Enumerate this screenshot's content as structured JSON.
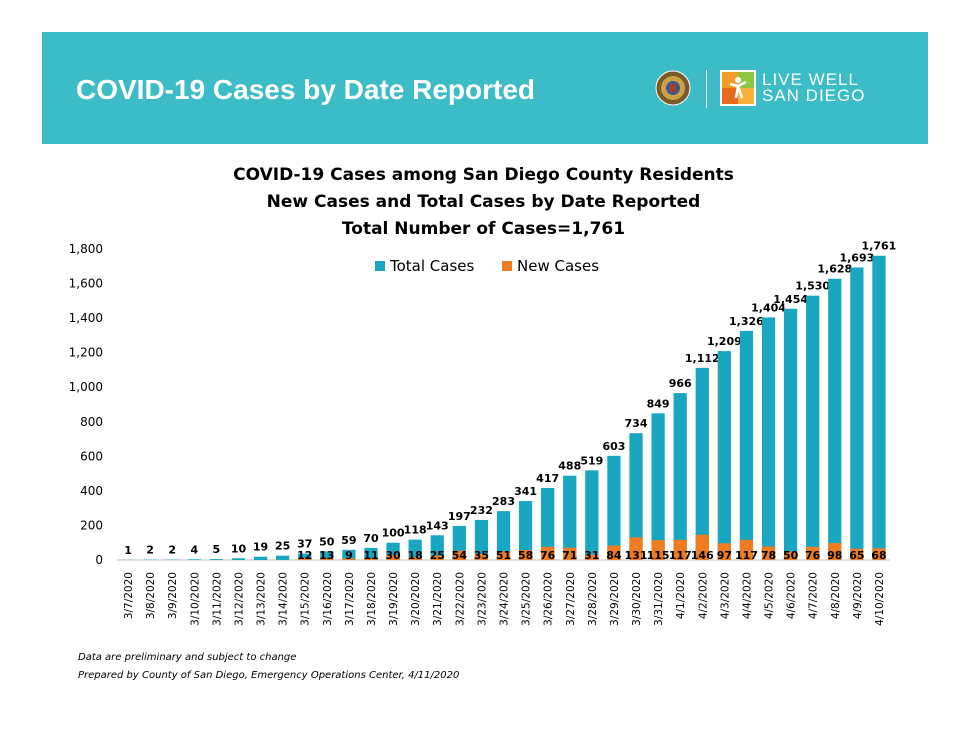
{
  "banner": {
    "title": "COVID-19 Cases by Date Reported",
    "logo_line1": "LIVE WELL",
    "logo_line2": "SAN DIEGO",
    "seal_icon": "county-seal-icon",
    "logo_icon": "live-well-logo-icon"
  },
  "chart_data": {
    "type": "bar",
    "title_lines": [
      "COVID-19 Cases among San Diego County Residents",
      "New Cases and Total Cases by Date Reported",
      "Total Number of Cases=1,761"
    ],
    "categories": [
      "3/7/2020",
      "3/8/2020",
      "3/9/2020",
      "3/10/2020",
      "3/11/2020",
      "3/12/2020",
      "3/13/2020",
      "3/14/2020",
      "3/15/2020",
      "3/16/2020",
      "3/17/2020",
      "3/18/2020",
      "3/19/2020",
      "3/20/2020",
      "3/21/2020",
      "3/22/2020",
      "3/23/2020",
      "3/24/2020",
      "3/25/2020",
      "3/26/2020",
      "3/27/2020",
      "3/28/2020",
      "3/29/2020",
      "3/30/2020",
      "3/31/2020",
      "4/1/2020",
      "4/2/2020",
      "4/3/2020",
      "4/4/2020",
      "4/5/2020",
      "4/6/2020",
      "4/7/2020",
      "4/8/2020",
      "4/9/2020",
      "4/10/2020"
    ],
    "series": [
      {
        "name": "Total Cases",
        "color": "#18a6c0",
        "values": [
          1,
          2,
          2,
          4,
          5,
          10,
          19,
          25,
          37,
          50,
          59,
          70,
          100,
          118,
          143,
          197,
          232,
          283,
          341,
          417,
          488,
          519,
          603,
          734,
          849,
          966,
          1112,
          1209,
          1326,
          1404,
          1454,
          1530,
          1628,
          1693,
          1761
        ],
        "labels": [
          "1",
          "2",
          "2",
          "4",
          "5",
          "10",
          "19",
          "25",
          "37",
          "50",
          "59",
          "70",
          "100",
          "118",
          "143",
          "197",
          "232",
          "283",
          "341",
          "417",
          "488",
          "519",
          "603",
          "734",
          "849",
          "966",
          "1,112",
          "1,209",
          "1,326",
          "1,404",
          "1,454",
          "1,530",
          "1,628",
          "1,693",
          "1,761"
        ]
      },
      {
        "name": "New Cases",
        "color": "#ee7d22",
        "values": [
          null,
          null,
          null,
          null,
          null,
          null,
          null,
          null,
          12,
          13,
          9,
          11,
          30,
          18,
          25,
          54,
          35,
          51,
          58,
          76,
          71,
          31,
          84,
          131,
          115,
          117,
          146,
          97,
          117,
          78,
          50,
          76,
          98,
          65,
          68
        ],
        "labels": [
          "",
          "",
          "",
          "",
          "",
          "",
          "",
          "",
          "12",
          "13",
          "9",
          "11",
          "30",
          "18",
          "25",
          "54",
          "35",
          "51",
          "58",
          "76",
          "71",
          "31",
          "84",
          "131",
          "115",
          "117",
          "146",
          "97",
          "117",
          "78",
          "50",
          "76",
          "98",
          "65",
          "68"
        ]
      }
    ],
    "y_ticks": [
      "0",
      "200",
      "400",
      "600",
      "800",
      "1,000",
      "1,200",
      "1,400",
      "1,600",
      "1,800"
    ],
    "ylim": [
      0,
      1800
    ],
    "grid": false,
    "legend_position": "top-center"
  },
  "footnotes": {
    "line1": "Data are preliminary and subject to change",
    "line2": "Prepared by County of San Diego, Emergency Operations Center, 4/11/2020"
  }
}
